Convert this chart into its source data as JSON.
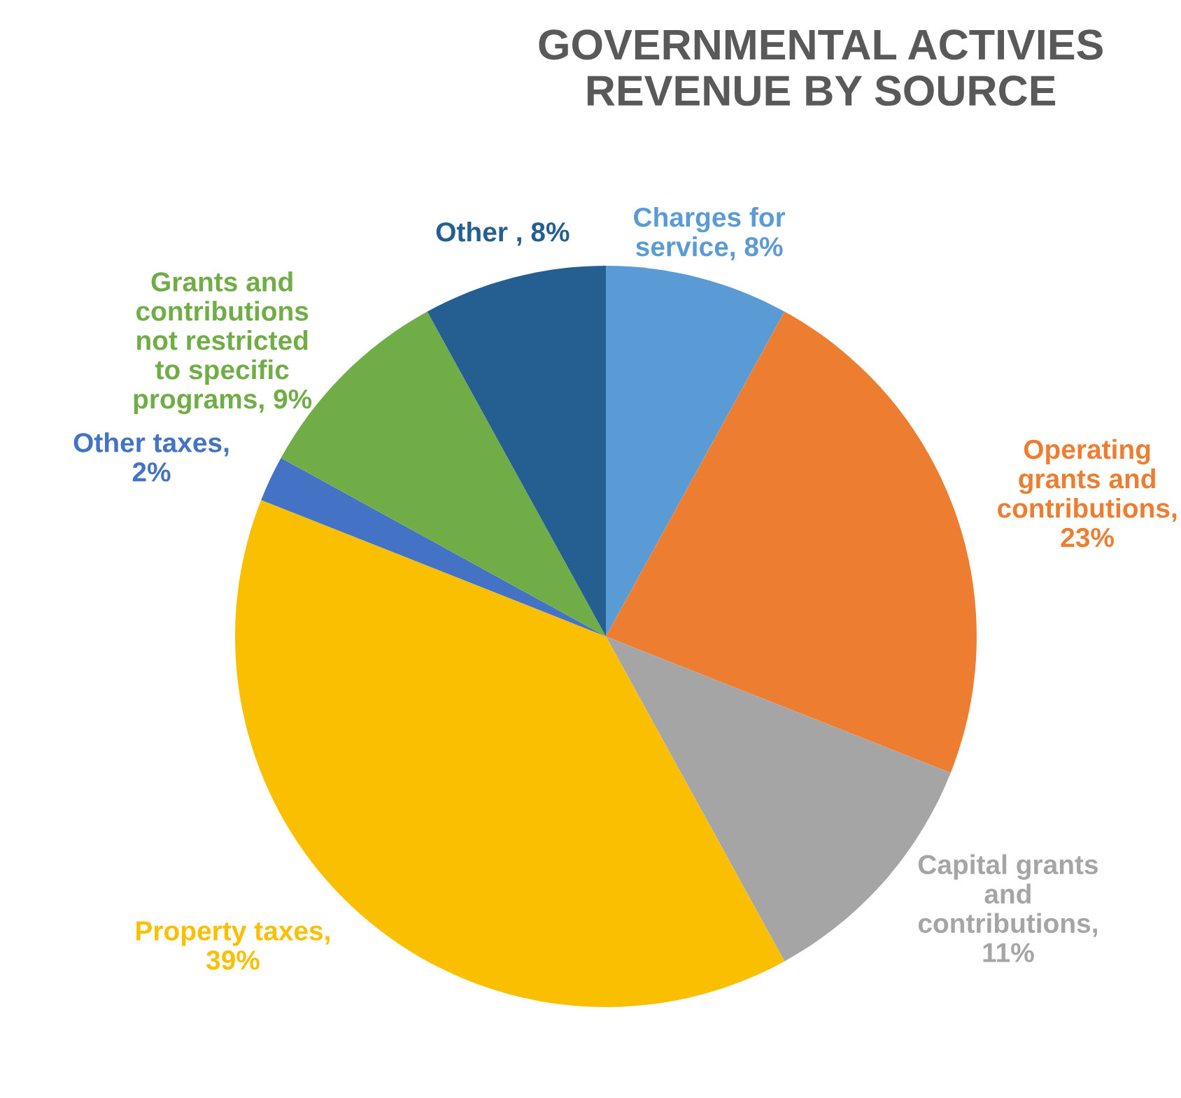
{
  "chart_data": {
    "type": "pie",
    "title": "GOVERNMENTAL ACTIVIES\nREVENUE BY SOURCE",
    "categories": [
      "Charges for\nservice, 8%",
      "Operating\ngrants and\ncontributions,\n23%",
      "Capital grants\nand\ncontributions,\n11%",
      "Property taxes,\n39%",
      "Other taxes,\n2%",
      "Grants and\ncontributions\nnot restricted\nto specific\nprograms, 9%",
      "Other , 8%"
    ],
    "values": [
      8,
      23,
      11,
      39,
      2,
      9,
      8
    ],
    "colors": [
      "#5b9bd5",
      "#ed7d31",
      "#a5a5a5",
      "#f9bf00",
      "#4472c4",
      "#70ad47",
      "#255e91"
    ],
    "legend": false
  }
}
